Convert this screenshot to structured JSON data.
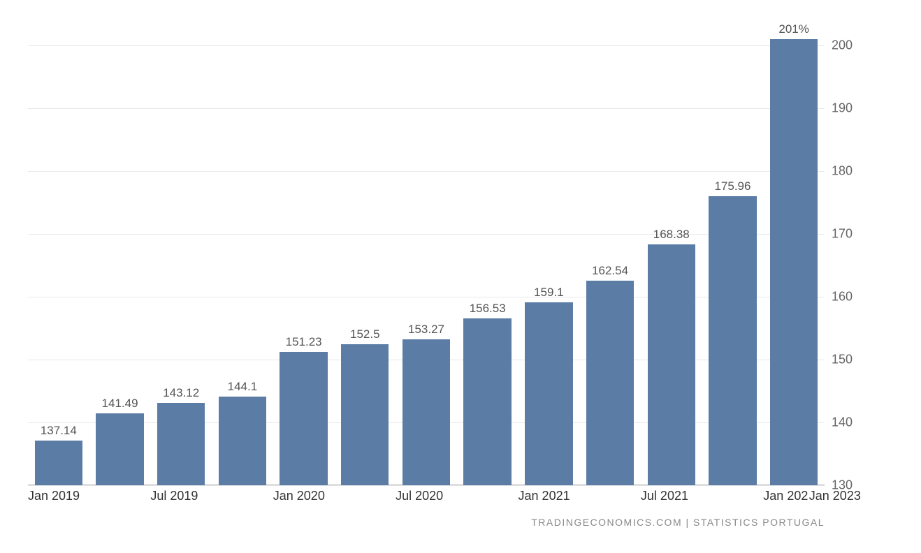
{
  "chart": {
    "type": "bar",
    "background_color": "#ffffff",
    "grid_color": "#e8e8e8",
    "axis_line_color": "#b0b0b0",
    "bar_color": "#5b7ca5",
    "bar_width_ratio": 0.78,
    "label_color": "#555555",
    "label_fontsize": 17,
    "ytick_color": "#666666",
    "ytick_fontsize": 18,
    "xtick_color": "#333333",
    "xtick_fontsize": 18,
    "ylim": [
      130,
      205
    ],
    "yticks": [
      130,
      140,
      150,
      160,
      170,
      180,
      190,
      200
    ],
    "values": [
      137.14,
      141.49,
      143.12,
      144.1,
      151.23,
      152.5,
      153.27,
      156.53,
      159.1,
      162.54,
      168.38,
      175.96,
      201
    ],
    "value_labels": [
      "137.14",
      "141.49",
      "143.12",
      "144.1",
      "151.23",
      "152.5",
      "153.27",
      "156.53",
      "159.1",
      "162.54",
      "168.38",
      "175.96",
      "201%"
    ],
    "x_categories": [
      "Jan 2019",
      "",
      "Jul 2019",
      "",
      "Jan 2020",
      "",
      "Jul 2020",
      "",
      "Jan 2021",
      "",
      "Jul 2021",
      "",
      "Jan 202"
    ],
    "x_right_label": "Jan 2023"
  },
  "attribution": "TRADINGECONOMICS.COM   |   STATISTICS  PORTUGAL"
}
